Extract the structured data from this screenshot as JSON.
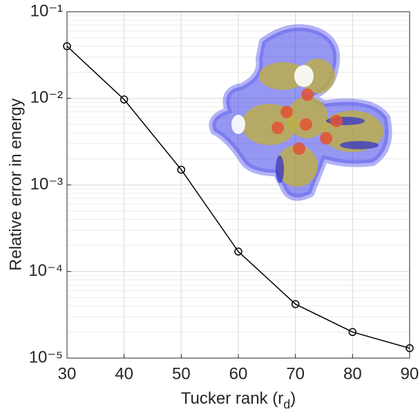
{
  "chart_data": {
    "type": "line",
    "log_y": true,
    "grid": true,
    "minor_grid": true,
    "x": [
      30,
      40,
      50,
      60,
      70,
      80,
      90
    ],
    "series": [
      {
        "color": "#000000",
        "values": [
          0.04,
          0.0097,
          0.0015,
          0.00017,
          4.2e-05,
          2e-05,
          1.3e-05
        ]
      }
    ],
    "xlim": [
      30,
      90
    ],
    "xticks": [
      30,
      40,
      50,
      60,
      70,
      80,
      90
    ],
    "ylim": [
      1e-05,
      0.1
    ],
    "yticks": [
      {
        "value": 1e-05,
        "label": "10⁻⁵"
      },
      {
        "value": 0.0001,
        "label": "10⁻⁴"
      },
      {
        "value": 0.001,
        "label": "10⁻³"
      },
      {
        "value": 0.01,
        "label": "10⁻²"
      },
      {
        "value": 0.1,
        "label": "10⁻¹"
      }
    ],
    "xlabel": {
      "main": "Tucker rank (r",
      "subscript": "d",
      "end": ")"
    },
    "ylabel": "Relative error in energy"
  }
}
